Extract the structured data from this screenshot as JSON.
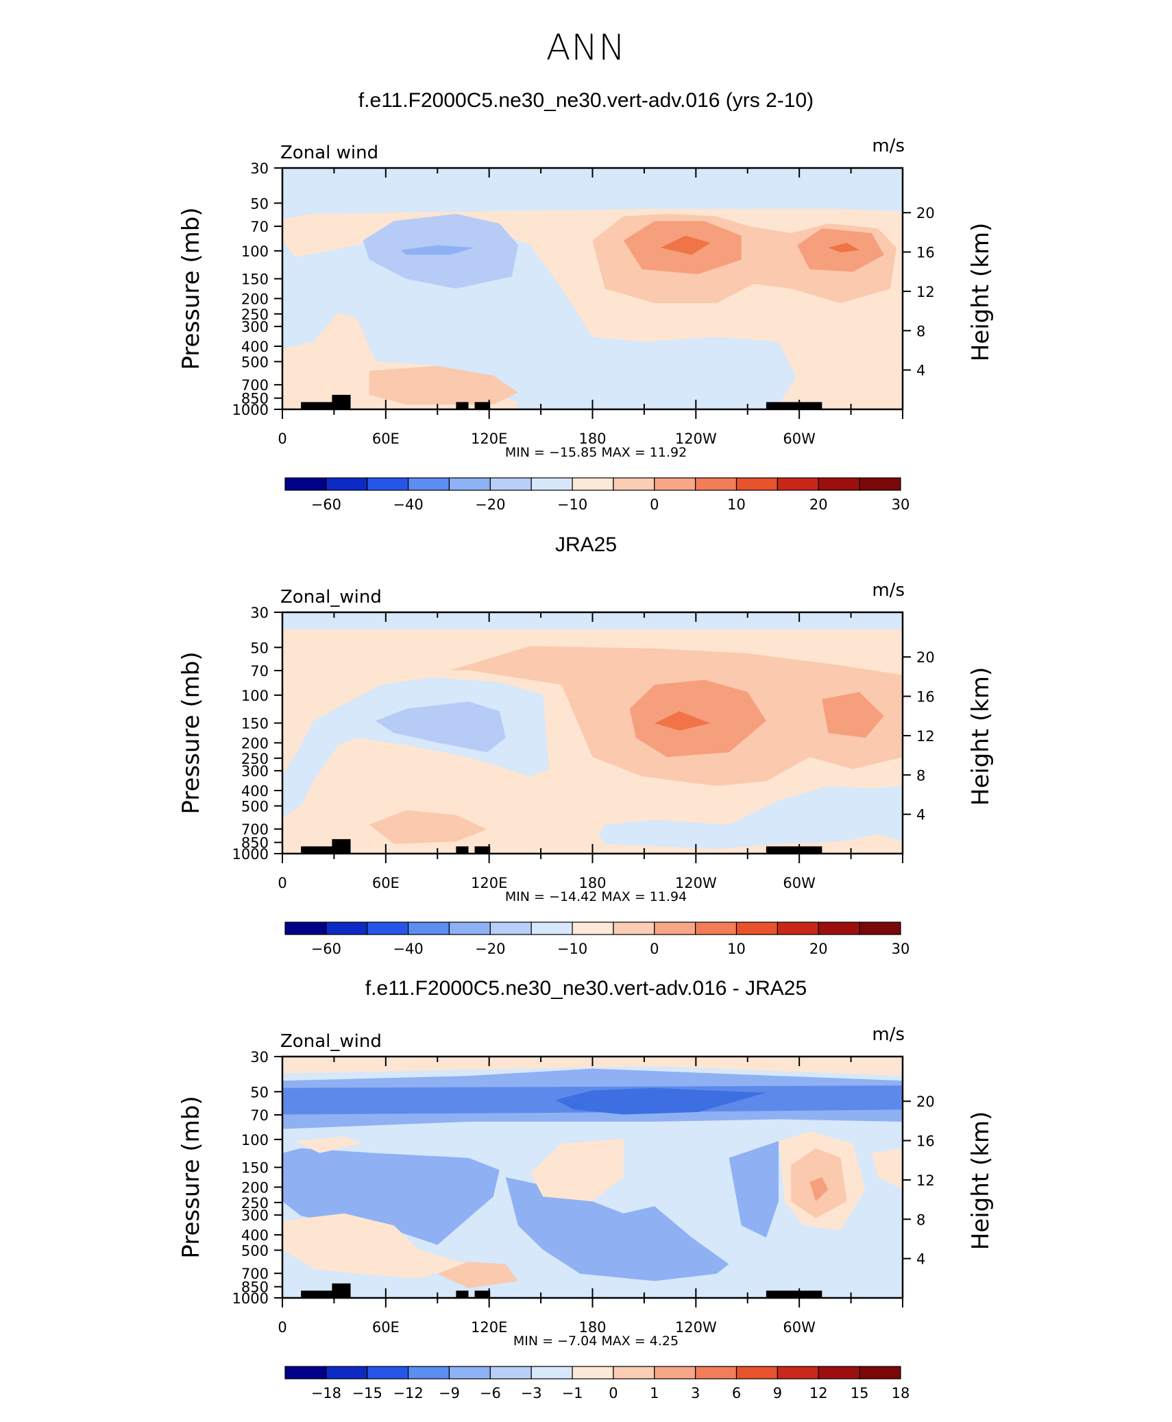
{
  "figure_title": "ANN",
  "panels": [
    {
      "title": "f.e11.F2000C5.ne30_ne30.vert-adv.016 (yrs 2-10)",
      "var_label": "Zonal wind",
      "units": "m/s",
      "stats": "MIN =  −15.85   MAX =   11.92"
    },
    {
      "title": "JRA25",
      "var_label": "Zonal_wind",
      "units": "m/s",
      "stats": "MIN =  −14.42   MAX =   11.94"
    },
    {
      "title": "f.e11.F2000C5.ne30_ne30.vert-adv.016 - JRA25",
      "var_label": "Zonal_wind",
      "units": "m/s",
      "stats": "MIN =   −7.04   MAX =    4.25"
    }
  ],
  "chart_data": [
    {
      "type": "heatmap",
      "title": "f.e11.F2000C5.ne30_ne30.vert-adv.016 (yrs 2-10)",
      "variable": "Zonal wind",
      "units": "m/s",
      "ylabel": "Pressure (mb)",
      "ylabel_right": "Height (km)",
      "x_ticks": [
        "0",
        "60E",
        "120E",
        "180",
        "120W",
        "60W"
      ],
      "y_ticks": [
        "30",
        "50",
        "70",
        "100",
        "150",
        "200",
        "250",
        "300",
        "400",
        "500",
        "700",
        "850",
        "1000"
      ],
      "y_ticks_right": [
        "20",
        "16",
        "12",
        "8",
        "4"
      ],
      "y_scale": "log",
      "ylim": [
        1000,
        30
      ],
      "min": -15.85,
      "max": 11.92,
      "colorbar_labels": [
        "−60",
        "−40",
        "−20",
        "−10",
        "0",
        "10",
        "20",
        "30"
      ],
      "features": [
        {
          "desc": "easterly core over Indian Ocean/Maritime Continent",
          "lon": 75,
          "p": 150,
          "value": -15.85
        },
        {
          "desc": "westerly core east Pacific",
          "lon": 230,
          "p": 150,
          "value": 11.92
        },
        {
          "desc": "westerly core Atlantic",
          "lon": 325,
          "p": 150,
          "value": 10
        }
      ]
    },
    {
      "type": "heatmap",
      "title": "JRA25",
      "variable": "Zonal_wind",
      "units": "m/s",
      "ylabel": "Pressure (mb)",
      "ylabel_right": "Height (km)",
      "x_ticks": [
        "0",
        "60E",
        "120E",
        "180",
        "120W",
        "60W"
      ],
      "y_ticks": [
        "30",
        "50",
        "70",
        "100",
        "150",
        "200",
        "250",
        "300",
        "400",
        "500",
        "700",
        "850",
        "1000"
      ],
      "y_ticks_right": [
        "20",
        "16",
        "12",
        "8",
        "4"
      ],
      "y_scale": "log",
      "ylim": [
        1000,
        30
      ],
      "min": -14.42,
      "max": 11.94,
      "colorbar_labels": [
        "−60",
        "−40",
        "−20",
        "−10",
        "0",
        "10",
        "20",
        "30"
      ],
      "features": [
        {
          "desc": "easterly core over Indian Ocean/Maritime Continent",
          "lon": 80,
          "p": 150,
          "value": -14.42
        },
        {
          "desc": "westerly core east Pacific",
          "lon": 230,
          "p": 150,
          "value": 11.94
        },
        {
          "desc": "westerly core Atlantic",
          "lon": 325,
          "p": 150,
          "value": 9
        }
      ]
    },
    {
      "type": "heatmap",
      "title": "f.e11.F2000C5.ne30_ne30.vert-adv.016 - JRA25",
      "variable": "Zonal_wind",
      "units": "m/s",
      "ylabel": "Pressure (mb)",
      "ylabel_right": "Height (km)",
      "x_ticks": [
        "0",
        "60E",
        "120E",
        "180",
        "120W",
        "60W"
      ],
      "y_ticks": [
        "30",
        "50",
        "70",
        "100",
        "150",
        "200",
        "250",
        "300",
        "400",
        "500",
        "700",
        "850",
        "1000"
      ],
      "y_ticks_right": [
        "20",
        "16",
        "12",
        "8",
        "4"
      ],
      "y_scale": "log",
      "ylim": [
        1000,
        30
      ],
      "min": -7.04,
      "max": 4.25,
      "colorbar_labels": [
        "−18",
        "−15",
        "−12",
        "−9",
        "−6",
        "−3",
        "−1",
        "0",
        "1",
        "3",
        "6",
        "9",
        "12",
        "15",
        "18"
      ],
      "features": [
        {
          "desc": "easterly bias band near 50-70 mb",
          "lon": 210,
          "p": 55,
          "value": -7.04
        },
        {
          "desc": "westerly bias over South America upper troposphere",
          "lon": 295,
          "p": 200,
          "value": 4.25
        }
      ]
    }
  ],
  "colors": {
    "cbar_main": [
      "#00008b",
      "#0d2bc4",
      "#2556e8",
      "#5b8ef0",
      "#8eb2f6",
      "#b8cff9",
      "#d8e8fb",
      "#fde9d8",
      "#fbcdb4",
      "#f7a786",
      "#f27d58",
      "#e8532c",
      "#c8271a",
      "#9d0f0f",
      "#7a0808"
    ],
    "cbar_diff": [
      "#00008b",
      "#0d2bc4",
      "#2556e8",
      "#5b8ef0",
      "#8eb2f6",
      "#b8cff9",
      "#d8e8fb",
      "#fde9d8",
      "#fbcdb4",
      "#f7a786",
      "#f27d58",
      "#e8532c",
      "#c8271a",
      "#9d0f0f",
      "#7a0808"
    ]
  }
}
